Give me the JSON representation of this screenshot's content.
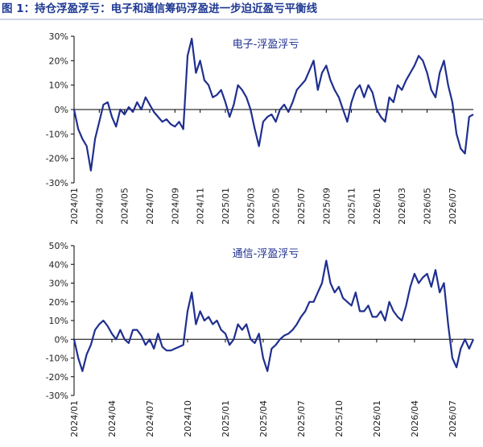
{
  "header": {
    "title": "图 1：持仓浮盈浮亏：电子和通信筹码浮盈进一步迫近盈亏平衡线"
  },
  "chart_data": [
    {
      "type": "line",
      "title": "电子-浮盈浮亏",
      "color": "#1f2f8f",
      "categories": [
        "2024/01",
        null,
        null,
        null,
        null,
        null,
        "2024/03",
        null,
        null,
        null,
        null,
        null,
        "2024/05",
        null,
        null,
        null,
        null,
        null,
        "2024/07",
        null,
        null,
        null,
        null,
        null,
        "2024/09",
        null,
        null,
        null,
        null,
        null,
        "2024/11",
        null,
        null,
        null,
        null,
        null,
        "2025/01",
        null,
        null,
        null,
        null,
        null,
        "2025/03",
        null,
        null,
        null,
        null,
        null,
        "2025/05",
        null,
        null,
        null,
        null,
        null,
        "2025/07",
        null,
        null,
        null,
        null,
        null,
        "2025/09",
        null,
        null,
        null,
        null,
        null,
        "2025/11",
        null,
        null,
        null,
        null,
        null,
        "2026/01",
        null,
        null,
        null,
        null,
        null,
        "2026/03",
        null,
        null,
        null,
        null,
        null,
        "2026/05",
        null,
        null,
        null,
        null,
        null,
        "2026/07",
        null,
        null,
        null,
        null,
        null
      ],
      "values": [
        0,
        -8,
        -12,
        -15,
        -25,
        -12,
        -5,
        2,
        3,
        -3,
        -7,
        0,
        -2,
        1,
        -1,
        3,
        0,
        5,
        2,
        -1,
        -3,
        -5,
        -4,
        -6,
        -7,
        -5,
        -8,
        22,
        29,
        15,
        20,
        12,
        10,
        5,
        6,
        8,
        3,
        -3,
        2,
        10,
        8,
        5,
        0,
        -8,
        -15,
        -5,
        -3,
        -2,
        -5,
        0,
        2,
        -1,
        3,
        8,
        10,
        12,
        16,
        20,
        8,
        15,
        18,
        12,
        8,
        5,
        0,
        -5,
        3,
        8,
        10,
        5,
        10,
        7,
        0,
        -3,
        -5,
        5,
        3,
        10,
        8,
        12,
        15,
        18,
        22,
        20,
        15,
        8,
        5,
        15,
        20,
        10,
        3,
        -10,
        -16,
        -18,
        -3,
        -2
      ],
      "ylim": [
        -30,
        30
      ],
      "yticks": [
        {
          "value": -30,
          "label": "-30%"
        },
        {
          "value": -20,
          "label": "-20%"
        },
        {
          "value": -10,
          "label": "-10%"
        },
        {
          "value": 0,
          "label": "0%"
        },
        {
          "value": 10,
          "label": "10%"
        },
        {
          "value": 20,
          "label": "20%"
        },
        {
          "value": 30,
          "label": "30%"
        }
      ]
    },
    {
      "type": "line",
      "title": "通信-浮盈浮亏",
      "color": "#1f2f8f",
      "categories": [
        "2024/01",
        null,
        null,
        null,
        null,
        null,
        null,
        null,
        null,
        "2024/04",
        null,
        null,
        null,
        null,
        null,
        null,
        null,
        null,
        "2024/07",
        null,
        null,
        null,
        null,
        null,
        null,
        null,
        null,
        "2024/10",
        null,
        null,
        null,
        null,
        null,
        null,
        null,
        null,
        "2025/01",
        null,
        null,
        null,
        null,
        null,
        null,
        null,
        null,
        "2025/04",
        null,
        null,
        null,
        null,
        null,
        null,
        null,
        null,
        "2025/07",
        null,
        null,
        null,
        null,
        null,
        null,
        null,
        null,
        "2025/10",
        null,
        null,
        null,
        null,
        null,
        null,
        null,
        null,
        "2026/01",
        null,
        null,
        null,
        null,
        null,
        null,
        null,
        null,
        "2026/04",
        null,
        null,
        null,
        null,
        null,
        null,
        null,
        null,
        "2026/07",
        null,
        null,
        null,
        null,
        null
      ],
      "values": [
        0,
        -10,
        -17,
        -8,
        -3,
        5,
        8,
        10,
        7,
        3,
        0,
        5,
        0,
        -2,
        5,
        5,
        2,
        -3,
        0,
        -5,
        3,
        -4,
        -6,
        -6,
        -5,
        -4,
        -3,
        15,
        25,
        8,
        15,
        10,
        12,
        8,
        10,
        5,
        3,
        -3,
        0,
        8,
        5,
        8,
        0,
        -2,
        3,
        -10,
        -17,
        -5,
        -3,
        0,
        2,
        3,
        5,
        8,
        12,
        15,
        20,
        20,
        25,
        30,
        42,
        30,
        25,
        28,
        22,
        20,
        18,
        25,
        15,
        15,
        18,
        12,
        12,
        15,
        10,
        20,
        15,
        12,
        10,
        18,
        28,
        35,
        30,
        33,
        35,
        28,
        37,
        25,
        30,
        8,
        -10,
        -15,
        -5,
        0,
        -5,
        0
      ],
      "ylim": [
        -30,
        50
      ],
      "yticks": [
        {
          "value": -30,
          "label": "-30%"
        },
        {
          "value": -20,
          "label": "-20%"
        },
        {
          "value": -10,
          "label": "-10%"
        },
        {
          "value": 0,
          "label": "0%"
        },
        {
          "value": 10,
          "label": "10%"
        },
        {
          "value": 20,
          "label": "20%"
        },
        {
          "value": 30,
          "label": "30%"
        },
        {
          "value": 40,
          "label": "40%"
        },
        {
          "value": 50,
          "label": "50%"
        }
      ]
    }
  ]
}
